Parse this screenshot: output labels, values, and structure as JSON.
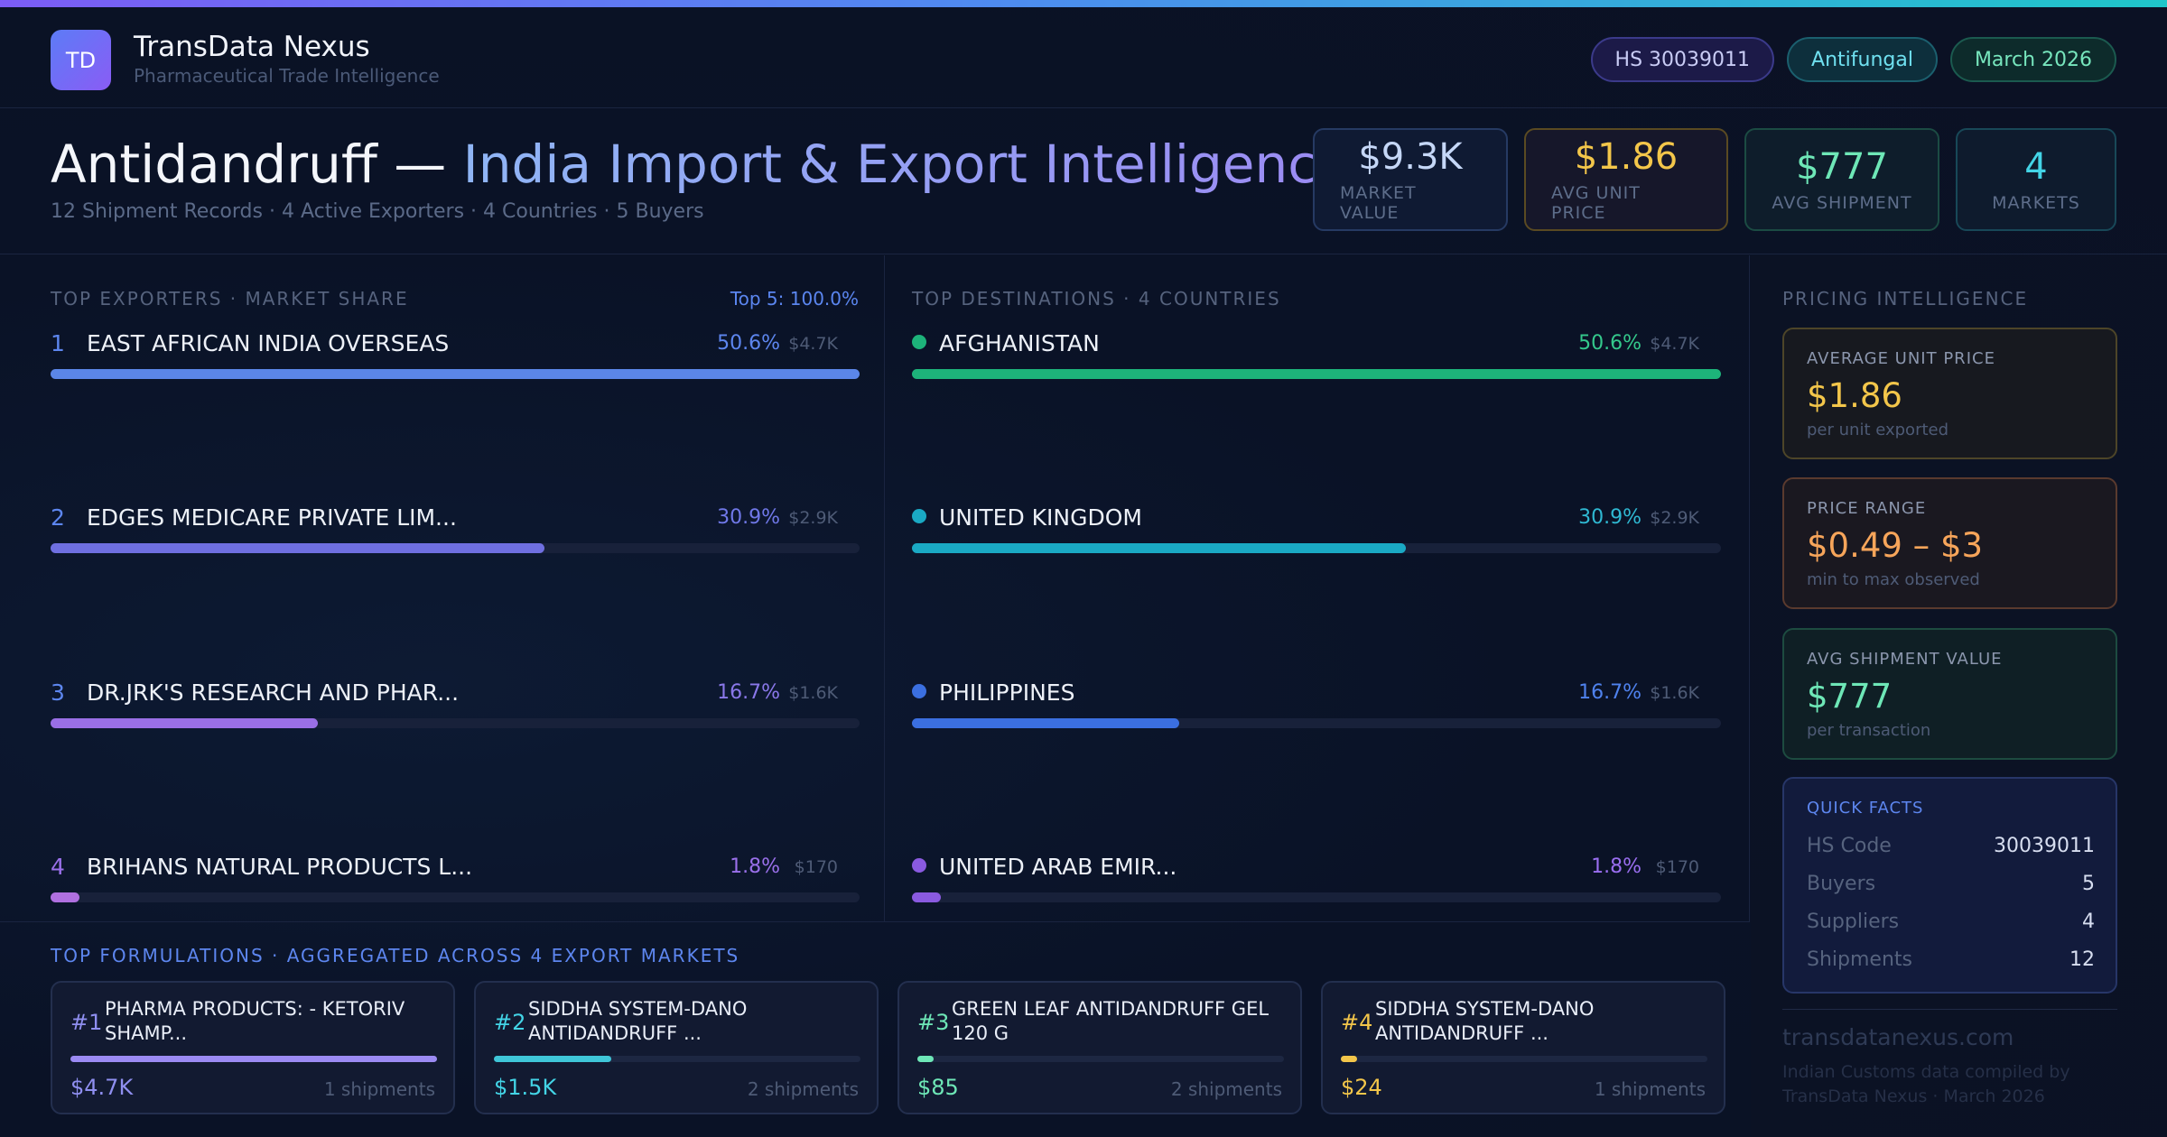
{
  "header": {
    "logo_text": "TD",
    "brand_name": "TransData Nexus",
    "brand_sub": "Pharmaceutical Trade Intelligence",
    "pills": [
      "HS 30039011",
      "Antifungal",
      "March 2026"
    ]
  },
  "title": {
    "part1": "Antidandruff —",
    "part2": "India Import & Export Intelligence",
    "subtitle": "12 Shipment Records · 4 Active Exporters · 4 Countries · 5 Buyers"
  },
  "kpis": [
    {
      "value": "$9.3K",
      "label": "MARKET VALUE"
    },
    {
      "value": "$1.86",
      "label": "AVG UNIT PRICE"
    },
    {
      "value": "$777",
      "label": "AVG SHIPMENT"
    },
    {
      "value": "4",
      "label": "MARKETS"
    }
  ],
  "exporters": {
    "label": "TOP EXPORTERS · MARKET SHARE",
    "top_note": "Top 5: 100.0%",
    "rows": [
      {
        "rank": "1",
        "name": "EAST AFRICAN INDIA OVERSEAS",
        "pct": "50.6%",
        "amount": "$4.7K",
        "share": 1.0,
        "color": "#5b86e8"
      },
      {
        "rank": "2",
        "name": "EDGES MEDICARE PRIVATE LIM...",
        "pct": "30.9%",
        "amount": "$2.9K",
        "share": 0.61,
        "color": "#6f6fe0"
      },
      {
        "rank": "3",
        "name": "DR.JRK'S RESEARCH AND PHAR...",
        "pct": "16.7%",
        "amount": "$1.6K",
        "share": 0.33,
        "color": "#9a6fe6"
      },
      {
        "rank": "4",
        "name": "BRIHANS NATURAL PRODUCTS L...",
        "pct": "1.8%",
        "amount": "$170",
        "share": 0.036,
        "color": "#b070e0"
      }
    ]
  },
  "destinations": {
    "label": "TOP DESTINATIONS · 4 COUNTRIES",
    "rows": [
      {
        "name": "AFGHANISTAN",
        "pct": "50.6%",
        "amount": "$4.7K",
        "share": 1.0,
        "color": "#1db37a",
        "pct_color": "#34c98c"
      },
      {
        "name": "UNITED KINGDOM",
        "pct": "30.9%",
        "amount": "$2.9K",
        "share": 0.61,
        "color": "#1aa9c4",
        "pct_color": "#2fb9d3"
      },
      {
        "name": "PHILIPPINES",
        "pct": "16.7%",
        "amount": "$1.6K",
        "share": 0.33,
        "color": "#3b6fe0",
        "pct_color": "#4f82ee"
      },
      {
        "name": "UNITED ARAB EMIR...",
        "pct": "1.8%",
        "amount": "$170",
        "share": 0.036,
        "color": "#8a5ae0",
        "pct_color": "#9a6ef0"
      }
    ]
  },
  "formulations": {
    "label": "TOP FORMULATIONS · AGGREGATED ACROSS 4 EXPORT MARKETS",
    "cards": [
      {
        "rank": "#1",
        "name": "PHARMA PRODUCTS: - KETORIV SHAMP...",
        "value": "$4.7K",
        "shipments": "1 shipments",
        "share": 1.0,
        "color": "#9b8af3",
        "rank_color": "#8f8ff0"
      },
      {
        "rank": "#2",
        "name": "SIDDHA SYSTEM-DANO ANTIDANDRUFF ...",
        "value": "$1.5K",
        "shipments": "2 shipments",
        "share": 0.32,
        "color": "#3fc6d8",
        "rank_color": "#43d4e6"
      },
      {
        "rank": "#3",
        "name": "GREEN LEAF ANTIDANDRUFF GEL 120 G",
        "value": "$85",
        "shipments": "2 shipments",
        "share": 0.045,
        "color": "#6ee7b7",
        "rank_color": "#6ee7b7"
      },
      {
        "rank": "#4",
        "name": "SIDDHA SYSTEM-DANO ANTIDANDRUFF ...",
        "value": "$24",
        "shipments": "1 shipments",
        "share": 0.045,
        "color": "#f3c64a",
        "rank_color": "#f3c64a"
      }
    ]
  },
  "pricing": {
    "label": "PRICING INTELLIGENCE",
    "cards": [
      {
        "label": "AVERAGE UNIT PRICE",
        "value": "$1.86",
        "sub": "per unit exported"
      },
      {
        "label": "PRICE RANGE",
        "value": "$0.49 – $3",
        "sub": "min to max observed"
      },
      {
        "label": "AVG SHIPMENT VALUE",
        "value": "$777",
        "sub": "per transaction"
      }
    ],
    "quick_facts": {
      "title": "QUICK FACTS",
      "rows": [
        {
          "key": "HS Code",
          "value": "30039011"
        },
        {
          "key": "Buyers",
          "value": "5"
        },
        {
          "key": "Suppliers",
          "value": "4"
        },
        {
          "key": "Shipments",
          "value": "12"
        }
      ]
    },
    "site": "transdatanexus.com",
    "footnote": "Indian Customs data compiled by TransData Nexus · March 2026"
  }
}
